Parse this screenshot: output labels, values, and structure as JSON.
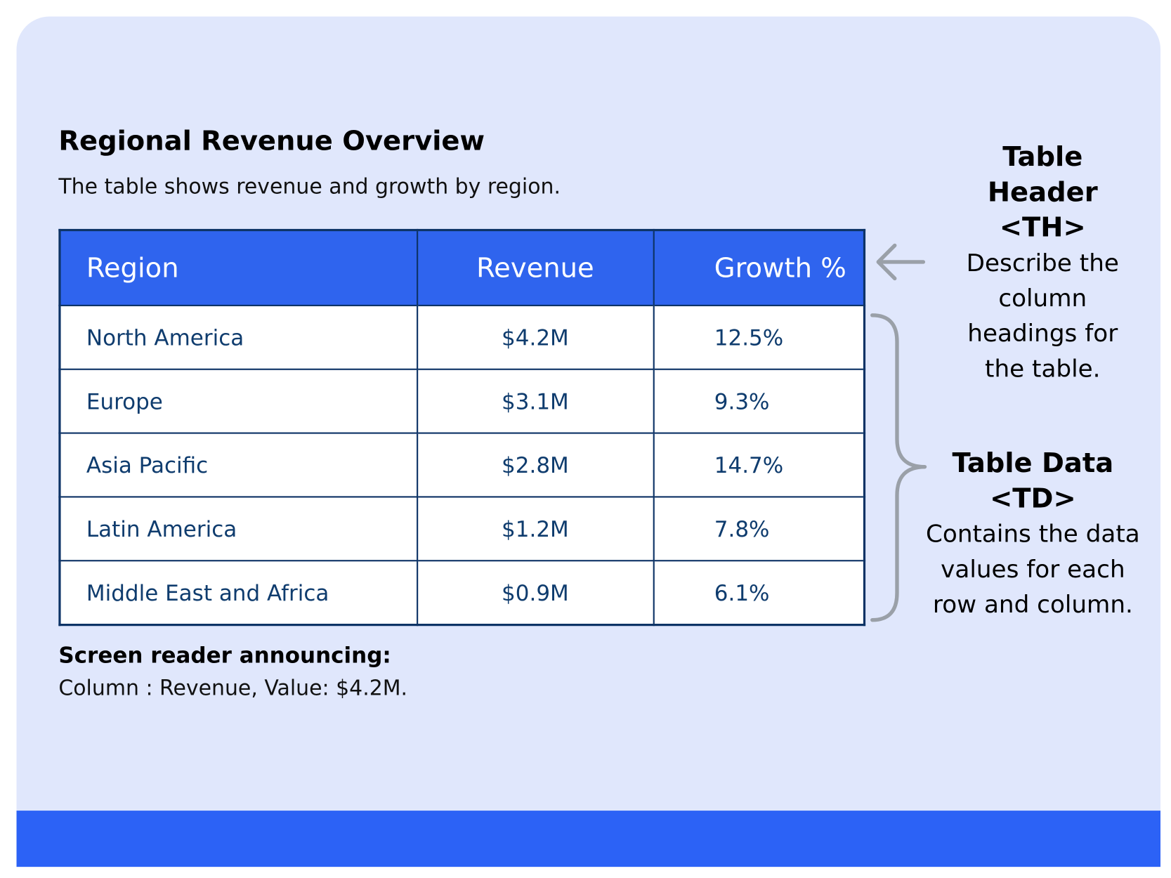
{
  "title": "Regional Revenue Overview",
  "subtitle": "The table shows revenue and growth by region.",
  "table": {
    "header": [
      "Region",
      "Revenue",
      "Growth %"
    ],
    "rows": [
      [
        "North America",
        "$4.2M",
        "12.5%"
      ],
      [
        "Europe",
        "$3.1M",
        "9.3%"
      ],
      [
        "Asia Pacific",
        "$2.8M",
        "14.7%"
      ],
      [
        "Latin America",
        "$1.2M",
        "7.8%"
      ],
      [
        "Middle East and Africa",
        "$0.9M",
        "6.1%"
      ]
    ]
  },
  "screen_reader": {
    "label": "Screen reader announcing:",
    "text": "Column : Revenue, Value: $4.2M."
  },
  "annotations": {
    "th": {
      "title": "Table Header",
      "tag": "<TH>",
      "description": "Describe the column headings for the table."
    },
    "td": {
      "title": "Table Data",
      "tag": "<TD>",
      "description": "Contains the data values for each row and column."
    }
  }
}
